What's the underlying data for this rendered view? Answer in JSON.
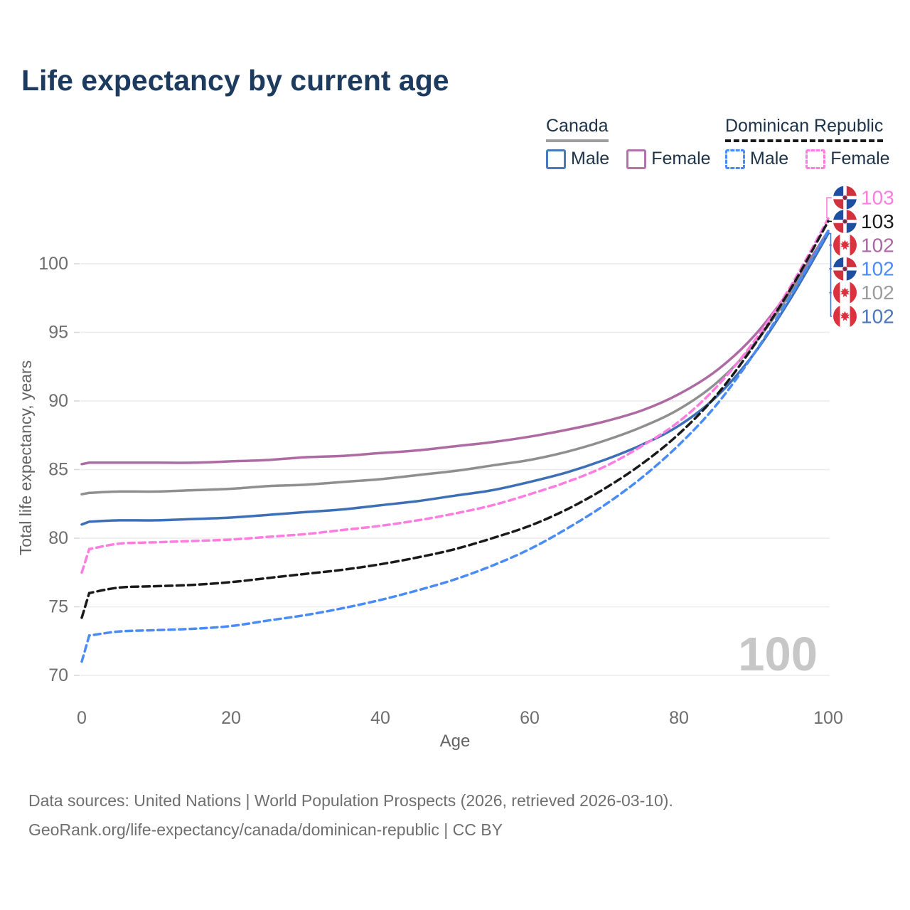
{
  "header": {
    "title": "Life expectancy by current age"
  },
  "legend": {
    "canada": {
      "label": "Canada",
      "male": "Male",
      "female": "Female"
    },
    "dominican_republic": {
      "label": "Dominican Republic",
      "male": "Male",
      "female": "Female"
    }
  },
  "chart_data": {
    "type": "line",
    "title": "Life expectancy by current age",
    "xlabel": "Age",
    "ylabel": "Total life expectancy, years",
    "xlim": [
      0,
      100
    ],
    "ylim": [
      70,
      103.5
    ],
    "xticks": [
      0,
      20,
      40,
      60,
      80,
      100
    ],
    "yticks": [
      70,
      75,
      80,
      85,
      90,
      95,
      100
    ],
    "grid": "horizontal",
    "age_counter_watermark": "100",
    "x": [
      0,
      1,
      5,
      10,
      15,
      20,
      25,
      30,
      35,
      40,
      45,
      50,
      55,
      60,
      65,
      70,
      75,
      80,
      85,
      90,
      95,
      100
    ],
    "series": [
      {
        "name": "Canada Female",
        "country": "Canada",
        "sex": "Female",
        "style": "solid",
        "color": "#ae6aa3",
        "end_label": "102",
        "end_label_color": "#ad68a4",
        "values": [
          85.4,
          85.5,
          85.5,
          85.5,
          85.5,
          85.6,
          85.7,
          85.9,
          86.0,
          86.2,
          86.4,
          86.7,
          87.0,
          87.4,
          87.9,
          88.5,
          89.3,
          90.5,
          92.2,
          94.7,
          98.2,
          102.4
        ]
      },
      {
        "name": "Canada Both sexes",
        "country": "Canada",
        "sex": "Both",
        "style": "solid",
        "color": "#8f8f8f",
        "end_label": "102",
        "end_label_color": "#9c9c9c",
        "values": [
          83.2,
          83.3,
          83.4,
          83.4,
          83.5,
          83.6,
          83.8,
          83.9,
          84.1,
          84.3,
          84.6,
          84.9,
          85.3,
          85.7,
          86.3,
          87.1,
          88.1,
          89.4,
          91.3,
          94.1,
          97.9,
          102.3
        ]
      },
      {
        "name": "Canada Male",
        "country": "Canada",
        "sex": "Male",
        "style": "solid",
        "color": "#3d6fb6",
        "end_label": "102",
        "end_label_color": "#4a77bd",
        "values": [
          81.0,
          81.2,
          81.3,
          81.3,
          81.4,
          81.5,
          81.7,
          81.9,
          82.1,
          82.4,
          82.7,
          83.1,
          83.5,
          84.1,
          84.8,
          85.7,
          86.8,
          88.2,
          90.3,
          93.4,
          97.5,
          102.2
        ]
      },
      {
        "name": "Dominican Republic Female",
        "country": "Dominican Republic",
        "sex": "Female",
        "style": "dashed",
        "color": "#ff7ce0",
        "end_label": "103",
        "end_label_color": "#ff7ce0",
        "values": [
          77.5,
          79.2,
          79.6,
          79.7,
          79.8,
          79.9,
          80.1,
          80.3,
          80.6,
          80.9,
          81.3,
          81.8,
          82.4,
          83.2,
          84.1,
          85.2,
          86.7,
          88.5,
          91.0,
          94.3,
          98.4,
          103.3
        ]
      },
      {
        "name": "Dominican Republic Both sexes",
        "country": "Dominican Republic",
        "sex": "Both",
        "style": "dashed",
        "color": "#1a1a1a",
        "end_label": "103",
        "end_label_color": "#1a1a1a",
        "values": [
          74.2,
          76.0,
          76.4,
          76.5,
          76.6,
          76.8,
          77.1,
          77.4,
          77.7,
          78.1,
          78.6,
          79.2,
          80.0,
          80.9,
          82.1,
          83.6,
          85.4,
          87.6,
          90.4,
          94.0,
          98.2,
          103.1
        ]
      },
      {
        "name": "Dominican Republic Male",
        "country": "Dominican Republic",
        "sex": "Male",
        "style": "dashed",
        "color": "#4a8cf6",
        "end_label": "102",
        "end_label_color": "#4a8cf6",
        "values": [
          71.0,
          72.9,
          73.2,
          73.3,
          73.4,
          73.6,
          74.0,
          74.4,
          74.9,
          75.5,
          76.2,
          77.0,
          78.0,
          79.2,
          80.7,
          82.4,
          84.4,
          86.8,
          89.7,
          93.4,
          97.7,
          102.4
        ]
      }
    ],
    "end_labels": [
      {
        "flag": "dominican-republic",
        "value": "103",
        "color": "#ff7ce0"
      },
      {
        "flag": "dominican-republic",
        "value": "103",
        "color": "#1a1a1a"
      },
      {
        "flag": "canada",
        "value": "102",
        "color": "#ad68a4"
      },
      {
        "flag": "dominican-republic",
        "value": "102",
        "color": "#4a8cf6"
      },
      {
        "flag": "canada",
        "value": "102",
        "color": "#9c9c9c"
      },
      {
        "flag": "canada",
        "value": "102",
        "color": "#4a77bd"
      }
    ],
    "legend_position": "top-right"
  },
  "footer": {
    "line1": "Data sources: United Nations | World Population Prospects (2026, retrieved 2026-03-10).",
    "line2": "GeoRank.org/life-expectancy/canada/dominican-republic | CC BY"
  }
}
